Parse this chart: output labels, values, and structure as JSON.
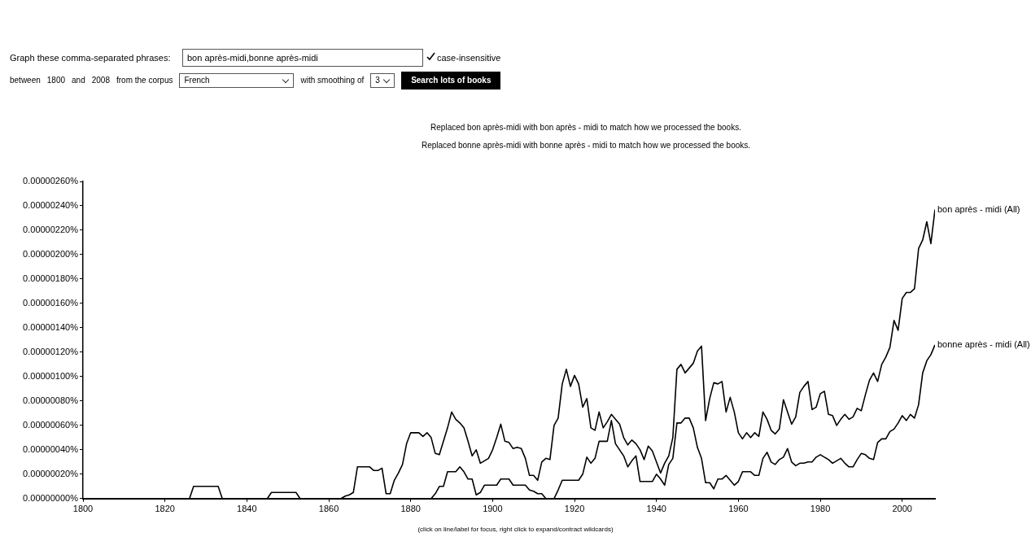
{
  "chart_data": {
    "type": "line",
    "annotations": [
      "Graph these comma-separated phrases:",
      "bon après-midi,bonne après-midi",
      "case-insensitive",
      "between",
      "1800",
      "and",
      "2008",
      "from the corpus",
      "French",
      "with smoothing of",
      "3",
      "Search lots of books",
      "Replaced bon après-midi with bon après - midi to match how we processed the books.",
      "Replaced bonne après-midi with bonne après - midi to match how we processed the books.",
      "(click on line/label for focus, right click to expand/contract wildcards)"
    ],
    "xlim": [
      1800,
      2008
    ],
    "xticks": [
      1800,
      1820,
      1840,
      1860,
      1880,
      1900,
      1920,
      1940,
      1960,
      1980,
      2000
    ],
    "ylim": [
      0,
      2.6e-06
    ],
    "yticks": [
      {
        "value": 0,
        "label": "0.00000000%"
      },
      {
        "value": 2e-07,
        "label": "0.00000020%"
      },
      {
        "value": 4e-07,
        "label": "0.00000040%"
      },
      {
        "value": 6e-07,
        "label": "0.00000060%"
      },
      {
        "value": 8e-07,
        "label": "0.00000080%"
      },
      {
        "value": 1e-06,
        "label": "0.00000100%"
      },
      {
        "value": 1.2e-06,
        "label": "0.00000120%"
      },
      {
        "value": 1.4e-06,
        "label": "0.00000140%"
      },
      {
        "value": 1.6e-06,
        "label": "0.00000160%"
      },
      {
        "value": 1.8e-06,
        "label": "0.00000180%"
      },
      {
        "value": 2e-06,
        "label": "0.00000200%"
      },
      {
        "value": 2.2e-06,
        "label": "0.00000220%"
      },
      {
        "value": 2.4e-06,
        "label": "0.00000240%"
      },
      {
        "value": 2.6e-06,
        "label": "0.00000260%"
      }
    ],
    "legend": false,
    "marker": "none",
    "line_style": "solid",
    "series": [
      {
        "name": "bon après - midi (All)",
        "color": "#000000",
        "x": [
          1800,
          1826,
          1827,
          1833,
          1834,
          1845,
          1846,
          1852,
          1853,
          1863,
          1864,
          1865,
          1866,
          1867,
          1868,
          1869,
          1870,
          1871,
          1872,
          1873,
          1874,
          1875,
          1876,
          1877,
          1878,
          1879,
          1880,
          1881,
          1882,
          1883,
          1884,
          1885,
          1886,
          1887,
          1888,
          1889,
          1890,
          1891,
          1892,
          1893,
          1894,
          1895,
          1896,
          1897,
          1898,
          1899,
          1900,
          1901,
          1902,
          1903,
          1904,
          1905,
          1906,
          1907,
          1908,
          1909,
          1910,
          1911,
          1912,
          1913,
          1914,
          1915,
          1916,
          1917,
          1918,
          1919,
          1920,
          1921,
          1922,
          1923,
          1924,
          1925,
          1926,
          1927,
          1928,
          1929,
          1930,
          1931,
          1932,
          1933,
          1934,
          1935,
          1936,
          1937,
          1938,
          1939,
          1940,
          1941,
          1942,
          1943,
          1944,
          1945,
          1946,
          1947,
          1948,
          1949,
          1950,
          1951,
          1952,
          1953,
          1954,
          1955,
          1956,
          1957,
          1958,
          1959,
          1960,
          1961,
          1962,
          1963,
          1964,
          1965,
          1966,
          1967,
          1968,
          1969,
          1970,
          1971,
          1972,
          1973,
          1974,
          1975,
          1976,
          1977,
          1978,
          1979,
          1980,
          1981,
          1982,
          1983,
          1984,
          1985,
          1986,
          1987,
          1988,
          1989,
          1990,
          1991,
          1992,
          1993,
          1994,
          1995,
          1996,
          1997,
          1998,
          1999,
          2000,
          2001,
          2002,
          2003,
          2004,
          2005,
          2006,
          2007,
          2008
        ],
        "values": [
          0,
          0,
          1e-07,
          1e-07,
          0,
          0,
          5e-08,
          5e-08,
          0,
          0,
          2e-08,
          3e-08,
          5e-08,
          2.6e-07,
          2.6e-07,
          2.6e-07,
          2.6e-07,
          2.3e-07,
          2.3e-07,
          2.5e-07,
          4e-08,
          4e-08,
          1.5e-07,
          2.1e-07,
          2.8e-07,
          4.5e-07,
          5.4e-07,
          5.4e-07,
          5.4e-07,
          5.1e-07,
          5.4e-07,
          5e-07,
          3.7e-07,
          3.6e-07,
          4.7e-07,
          5.8e-07,
          7.1e-07,
          6.5e-07,
          6.2e-07,
          5.8e-07,
          4.7e-07,
          3.5e-07,
          4e-07,
          2.9e-07,
          3.1e-07,
          3.3e-07,
          4e-07,
          5e-07,
          6.1e-07,
          4.7e-07,
          4.6e-07,
          4.1e-07,
          4.2e-07,
          4.1e-07,
          3.3e-07,
          1.9e-07,
          1.9e-07,
          1.5e-07,
          3e-07,
          3.3e-07,
          3.2e-07,
          6e-07,
          6.6e-07,
          9.4e-07,
          1.06e-06,
          9.2e-07,
          1.01e-06,
          9.4e-07,
          7.5e-07,
          8.2e-07,
          5.8e-07,
          5.6e-07,
          7.1e-07,
          5.8e-07,
          6.3e-07,
          6.9e-07,
          6.5e-07,
          6.1e-07,
          5e-07,
          4.4e-07,
          4.8e-07,
          4.5e-07,
          4e-07,
          3.2e-07,
          4.3e-07,
          3.9e-07,
          3e-07,
          2.1e-07,
          2.9e-07,
          3.5e-07,
          5e-07,
          1.06e-06,
          1.1e-06,
          1.03e-06,
          1.07e-06,
          1.11e-06,
          1.21e-06,
          1.25e-06,
          6.4e-07,
          8.2e-07,
          9.5e-07,
          9.4e-07,
          9.6e-07,
          7.1e-07,
          8.3e-07,
          7.1e-07,
          5.4e-07,
          4.9e-07,
          5.4e-07,
          5e-07,
          5.4e-07,
          5.1e-07,
          7.1e-07,
          6.5e-07,
          5.6e-07,
          5.3e-07,
          5.7e-07,
          8.1e-07,
          7.1e-07,
          6.1e-07,
          6.7e-07,
          8.7e-07,
          9.2e-07,
          9.6e-07,
          7.3e-07,
          7.5e-07,
          8.6e-07,
          8.8e-07,
          6.9e-07,
          6.8e-07,
          6e-07,
          6.5e-07,
          6.9e-07,
          6.5e-07,
          6.7e-07,
          7.4e-07,
          7.2e-07,
          8.5e-07,
          9.7e-07,
          1.03e-06,
          9.6e-07,
          1.1e-06,
          1.16e-06,
          1.24e-06,
          1.46e-06,
          1.38e-06,
          1.64e-06,
          1.69e-06,
          1.69e-06,
          1.72e-06,
          2.05e-06,
          2.12e-06,
          2.27e-06,
          2.09e-06,
          2.37e-06
        ]
      },
      {
        "name": "bonne après - midi (All)",
        "color": "#000000",
        "x": [
          1800,
          1885,
          1886,
          1887,
          1888,
          1889,
          1890,
          1891,
          1892,
          1893,
          1894,
          1895,
          1896,
          1897,
          1898,
          1899,
          1900,
          1901,
          1902,
          1903,
          1904,
          1905,
          1906,
          1907,
          1908,
          1909,
          1910,
          1911,
          1912,
          1913,
          1914,
          1915,
          1916,
          1917,
          1918,
          1919,
          1920,
          1921,
          1922,
          1923,
          1924,
          1925,
          1926,
          1927,
          1928,
          1929,
          1930,
          1931,
          1932,
          1933,
          1934,
          1935,
          1936,
          1937,
          1938,
          1939,
          1940,
          1941,
          1942,
          1943,
          1944,
          1945,
          1946,
          1947,
          1948,
          1949,
          1950,
          1951,
          1952,
          1953,
          1954,
          1955,
          1956,
          1957,
          1958,
          1959,
          1960,
          1961,
          1962,
          1963,
          1964,
          1965,
          1966,
          1967,
          1968,
          1969,
          1970,
          1971,
          1972,
          1973,
          1974,
          1975,
          1976,
          1977,
          1978,
          1979,
          1980,
          1981,
          1982,
          1983,
          1984,
          1985,
          1986,
          1987,
          1988,
          1989,
          1990,
          1991,
          1992,
          1993,
          1994,
          1995,
          1996,
          1997,
          1998,
          1999,
          2000,
          2001,
          2002,
          2003,
          2004,
          2005,
          2006,
          2007,
          2008
        ],
        "values": [
          0,
          0,
          4e-08,
          1e-07,
          1e-07,
          2.2e-07,
          2.2e-07,
          2.2e-07,
          2.6e-07,
          2.2e-07,
          1.6e-07,
          1.6e-07,
          3e-08,
          5e-08,
          1.1e-07,
          1.1e-07,
          1.1e-07,
          1.1e-07,
          1.6e-07,
          1.6e-07,
          1.6e-07,
          1.1e-07,
          1.1e-07,
          1.1e-07,
          1.1e-07,
          7e-08,
          6e-08,
          4e-08,
          4e-08,
          0,
          0,
          0,
          7e-08,
          1.5e-07,
          1.5e-07,
          1.5e-07,
          1.5e-07,
          1.5e-07,
          2e-07,
          3.4e-07,
          2.9e-07,
          3.3e-07,
          4.7e-07,
          4.7e-07,
          4.7e-07,
          6.4e-07,
          4.5e-07,
          4e-07,
          3.5e-07,
          2.6e-07,
          3.1e-07,
          3.5e-07,
          1.4e-07,
          1.4e-07,
          1.4e-07,
          1.4e-07,
          2e-07,
          1.6e-07,
          1.1e-07,
          2.8e-07,
          3.3e-07,
          6.2e-07,
          6.2e-07,
          6.6e-07,
          6.6e-07,
          5.8e-07,
          4.2e-07,
          3.3e-07,
          1.3e-07,
          1.3e-07,
          8e-08,
          1.6e-07,
          1.6e-07,
          1.9e-07,
          1.5e-07,
          1.1e-07,
          1.4e-07,
          2.2e-07,
          2.2e-07,
          2.2e-07,
          1.9e-07,
          1.9e-07,
          3.3e-07,
          3.8e-07,
          3e-07,
          2.8e-07,
          3.2e-07,
          3.4e-07,
          4.1e-07,
          3e-07,
          2.7e-07,
          2.9e-07,
          2.9e-07,
          3e-07,
          3e-07,
          3.4e-07,
          3.6e-07,
          3.4e-07,
          3.2e-07,
          2.9e-07,
          3.1e-07,
          3.3e-07,
          2.9e-07,
          2.6e-07,
          2.6e-07,
          3.2e-07,
          3.7e-07,
          3.6e-07,
          3.3e-07,
          3.2e-07,
          4.6e-07,
          4.9e-07,
          4.9e-07,
          5.5e-07,
          5.7e-07,
          6.2e-07,
          6.8e-07,
          6.4e-07,
          6.9e-07,
          6.6e-07,
          7.7e-07,
          1.03e-06,
          1.13e-06,
          1.18e-06,
          1.26e-06
        ]
      }
    ]
  }
}
